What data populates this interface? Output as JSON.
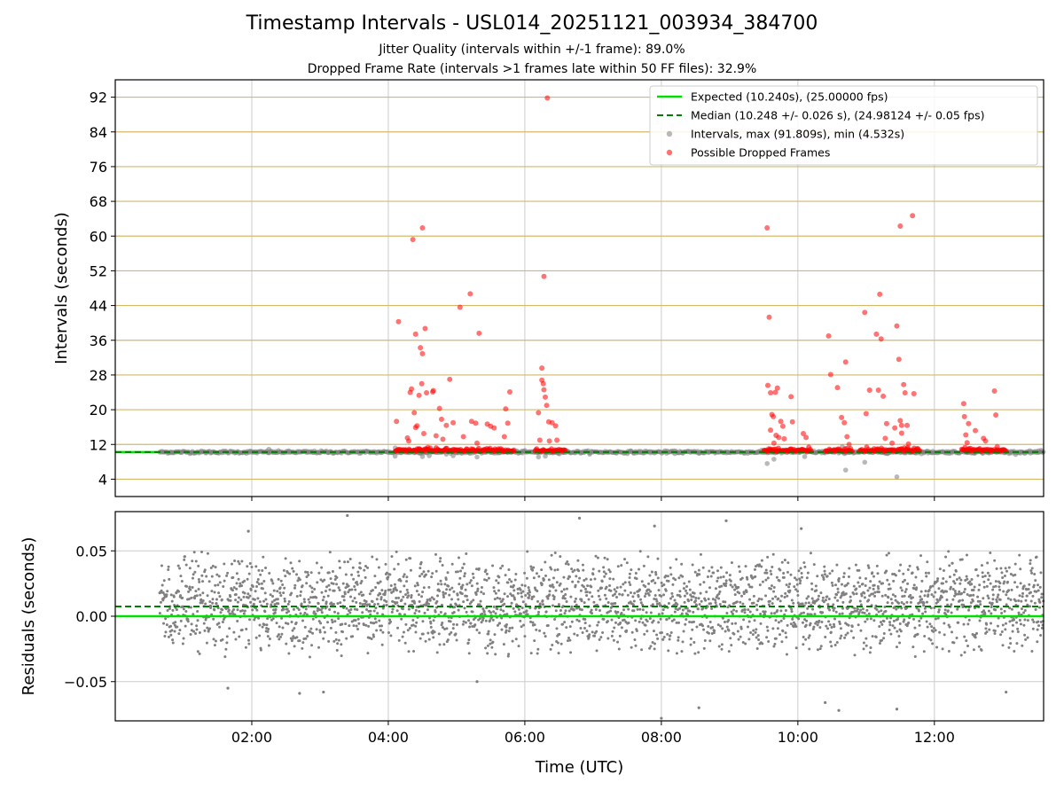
{
  "title": "Timestamp Intervals - USL014_20251121_003934_384700",
  "subtitle_1": "Jitter Quality (intervals within +/-1 frame): 89.0%",
  "subtitle_2": "Dropped Frame Rate (intervals >1 frames late within 50 FF files): 32.9%",
  "colors": {
    "expected": "#00e000",
    "median": "#008000",
    "interval": "#808080",
    "dropped": "#ff0000",
    "hgrid": "#d4b86a",
    "grid": "#cccccc"
  },
  "chart_data": [
    {
      "type": "scatter",
      "name": "intervals",
      "xlabel": "",
      "ylabel": "Intervals (seconds)",
      "xlim": [
        0.0,
        13.6
      ],
      "ylim": [
        0,
        96
      ],
      "yticks": [
        4,
        12,
        20,
        28,
        36,
        44,
        52,
        60,
        68,
        76,
        84,
        92
      ],
      "yticklabels": [
        "4",
        "12",
        "20",
        "28",
        "36",
        "44",
        "52",
        "60",
        "68",
        "76",
        "84",
        "92"
      ],
      "xticks": [
        2,
        4,
        6,
        8,
        10,
        12
      ],
      "xgrid": true,
      "ygrid": true,
      "legend_position": "upper-right",
      "legend": [
        {
          "label": "Expected (10.240s), (25.00000 fps)",
          "style": "solid-line"
        },
        {
          "label": "Median (10.248 +/- 0.026 s), (24.98124 +/- 0.05 fps)",
          "style": "dashed-line"
        },
        {
          "label": "Intervals, max (91.809s), min (4.532s)",
          "style": "gray-dot"
        },
        {
          "label": "Possible Dropped Frames",
          "style": "red-dot"
        }
      ],
      "expected": 10.24,
      "median": 10.248,
      "interval_range_hours": [
        0.65,
        13.6
      ],
      "interval_baseline": 10.24,
      "intervals_outliers": [
        [
          2.25,
          10.9
        ],
        [
          4.1,
          11.2
        ],
        [
          4.1,
          9.3
        ],
        [
          4.5,
          9.2
        ],
        [
          4.6,
          9.4
        ],
        [
          4.95,
          9.4
        ],
        [
          5.3,
          9.1
        ],
        [
          6.2,
          9.1
        ],
        [
          6.3,
          9.3
        ],
        [
          9.55,
          7.6
        ],
        [
          9.65,
          8.6
        ],
        [
          10.1,
          9.2
        ],
        [
          10.65,
          11.5
        ],
        [
          10.98,
          7.9
        ],
        [
          10.7,
          6.1
        ],
        [
          11.45,
          4.532
        ]
      ],
      "dropped_clusters": [
        [
          4.1,
          5.85
        ],
        [
          6.15,
          6.6
        ],
        [
          9.5,
          10.2
        ],
        [
          10.4,
          10.8
        ],
        [
          10.9,
          11.8
        ],
        [
          12.4,
          13.05
        ]
      ],
      "dropped_frames": [
        [
          4.15,
          40.3
        ],
        [
          4.12,
          17.3
        ],
        [
          4.28,
          13.5
        ],
        [
          4.3,
          12.8
        ],
        [
          4.32,
          24.0
        ],
        [
          4.34,
          24.8
        ],
        [
          4.36,
          59.2
        ],
        [
          4.38,
          19.3
        ],
        [
          4.4,
          15.9
        ],
        [
          4.42,
          16.3
        ],
        [
          4.4,
          37.4
        ],
        [
          4.45,
          23.3
        ],
        [
          4.47,
          34.3
        ],
        [
          4.49,
          26.0
        ],
        [
          4.5,
          32.9
        ],
        [
          4.5,
          61.9
        ],
        [
          4.52,
          14.5
        ],
        [
          4.54,
          38.7
        ],
        [
          4.56,
          23.9
        ],
        [
          4.58,
          11.3
        ],
        [
          4.65,
          24.1
        ],
        [
          4.66,
          24.4
        ],
        [
          4.7,
          14.0
        ],
        [
          4.75,
          20.3
        ],
        [
          4.78,
          17.8
        ],
        [
          4.8,
          13.2
        ],
        [
          4.85,
          16.4
        ],
        [
          4.9,
          27.0
        ],
        [
          4.95,
          17.0
        ],
        [
          5.05,
          43.6
        ],
        [
          5.1,
          13.8
        ],
        [
          5.2,
          46.7
        ],
        [
          5.22,
          17.3
        ],
        [
          5.28,
          16.9
        ],
        [
          5.3,
          12.3
        ],
        [
          5.33,
          37.6
        ],
        [
          5.45,
          16.7
        ],
        [
          5.5,
          16.2
        ],
        [
          5.55,
          15.8
        ],
        [
          5.7,
          13.8
        ],
        [
          5.72,
          20.2
        ],
        [
          5.75,
          16.9
        ],
        [
          5.78,
          24.1
        ],
        [
          6.2,
          19.3
        ],
        [
          6.22,
          13.0
        ],
        [
          6.25,
          29.6
        ],
        [
          6.25,
          26.8
        ],
        [
          6.27,
          26.0
        ],
        [
          6.28,
          24.6
        ],
        [
          6.28,
          50.7
        ],
        [
          6.3,
          22.9
        ],
        [
          6.32,
          21.0
        ],
        [
          6.33,
          91.809
        ],
        [
          6.35,
          17.2
        ],
        [
          6.36,
          12.8
        ],
        [
          6.4,
          17.0
        ],
        [
          6.45,
          16.3
        ],
        [
          6.47,
          13.0
        ],
        [
          9.55,
          61.9
        ],
        [
          9.56,
          25.6
        ],
        [
          9.58,
          41.3
        ],
        [
          9.6,
          23.9
        ],
        [
          9.6,
          15.3
        ],
        [
          9.62,
          18.9
        ],
        [
          9.64,
          18.4
        ],
        [
          9.65,
          12.3
        ],
        [
          9.67,
          24.0
        ],
        [
          9.68,
          14.1
        ],
        [
          9.7,
          25.0
        ],
        [
          9.72,
          13.6
        ],
        [
          9.75,
          17.3
        ],
        [
          9.78,
          16.2
        ],
        [
          9.8,
          13.3
        ],
        [
          9.9,
          23.0
        ],
        [
          9.92,
          17.2
        ],
        [
          10.08,
          14.5
        ],
        [
          10.12,
          13.6
        ],
        [
          10.45,
          37.0
        ],
        [
          10.48,
          28.1
        ],
        [
          10.58,
          25.1
        ],
        [
          10.64,
          18.2
        ],
        [
          10.68,
          17.0
        ],
        [
          10.7,
          31.0
        ],
        [
          10.72,
          13.8
        ],
        [
          10.75,
          12.0
        ],
        [
          10.98,
          42.4
        ],
        [
          11.0,
          19.1
        ],
        [
          11.05,
          24.5
        ],
        [
          11.15,
          37.4
        ],
        [
          11.18,
          24.5
        ],
        [
          11.2,
          46.6
        ],
        [
          11.22,
          36.3
        ],
        [
          11.25,
          23.1
        ],
        [
          11.28,
          13.4
        ],
        [
          11.3,
          16.8
        ],
        [
          11.38,
          12.3
        ],
        [
          11.42,
          15.8
        ],
        [
          11.45,
          39.3
        ],
        [
          11.48,
          31.6
        ],
        [
          11.5,
          62.3
        ],
        [
          11.5,
          17.5
        ],
        [
          11.52,
          16.4
        ],
        [
          11.52,
          14.6
        ],
        [
          11.55,
          25.8
        ],
        [
          11.57,
          23.9
        ],
        [
          11.6,
          16.4
        ],
        [
          11.62,
          12.1
        ],
        [
          11.68,
          64.7
        ],
        [
          11.7,
          23.7
        ],
        [
          12.43,
          21.4
        ],
        [
          12.44,
          18.4
        ],
        [
          12.46,
          14.2
        ],
        [
          12.48,
          12.4
        ],
        [
          12.5,
          16.8
        ],
        [
          12.6,
          15.2
        ],
        [
          12.72,
          13.4
        ],
        [
          12.75,
          12.8
        ],
        [
          12.88,
          24.3
        ],
        [
          12.9,
          18.8
        ],
        [
          12.92,
          11.5
        ]
      ]
    },
    {
      "type": "scatter",
      "name": "residuals",
      "xlabel": "Time (UTC)",
      "ylabel": "Residuals (seconds)",
      "xlim": [
        0.0,
        13.6
      ],
      "ylim": [
        -0.08,
        0.08
      ],
      "yticks": [
        -0.05,
        0.0,
        0.05
      ],
      "yticklabels": [
        "−0.05",
        "0.00",
        "0.05"
      ],
      "xticks": [
        2,
        4,
        6,
        8,
        10,
        12
      ],
      "xticklabels": [
        "02:00",
        "04:00",
        "06:00",
        "08:00",
        "10:00",
        "12:00"
      ],
      "xgrid": true,
      "ygrid": true,
      "expected": 0.0,
      "median": 0.0075,
      "residual_range_hours": [
        0.65,
        13.6
      ],
      "residual_center": 0.01,
      "residual_spread": 0.042,
      "residual_outliers": [
        [
          3.4,
          0.077
        ],
        [
          6.8,
          0.075
        ],
        [
          8.95,
          0.073
        ],
        [
          1.95,
          0.065
        ],
        [
          10.05,
          0.067
        ],
        [
          7.9,
          0.069
        ],
        [
          1.65,
          -0.055
        ],
        [
          2.7,
          -0.059
        ],
        [
          3.05,
          -0.058
        ],
        [
          11.45,
          -0.071
        ],
        [
          10.6,
          -0.072
        ],
        [
          10.4,
          -0.066
        ],
        [
          8.0,
          -0.078
        ],
        [
          8.55,
          -0.07
        ],
        [
          13.05,
          -0.058
        ],
        [
          5.3,
          -0.05
        ]
      ]
    }
  ]
}
